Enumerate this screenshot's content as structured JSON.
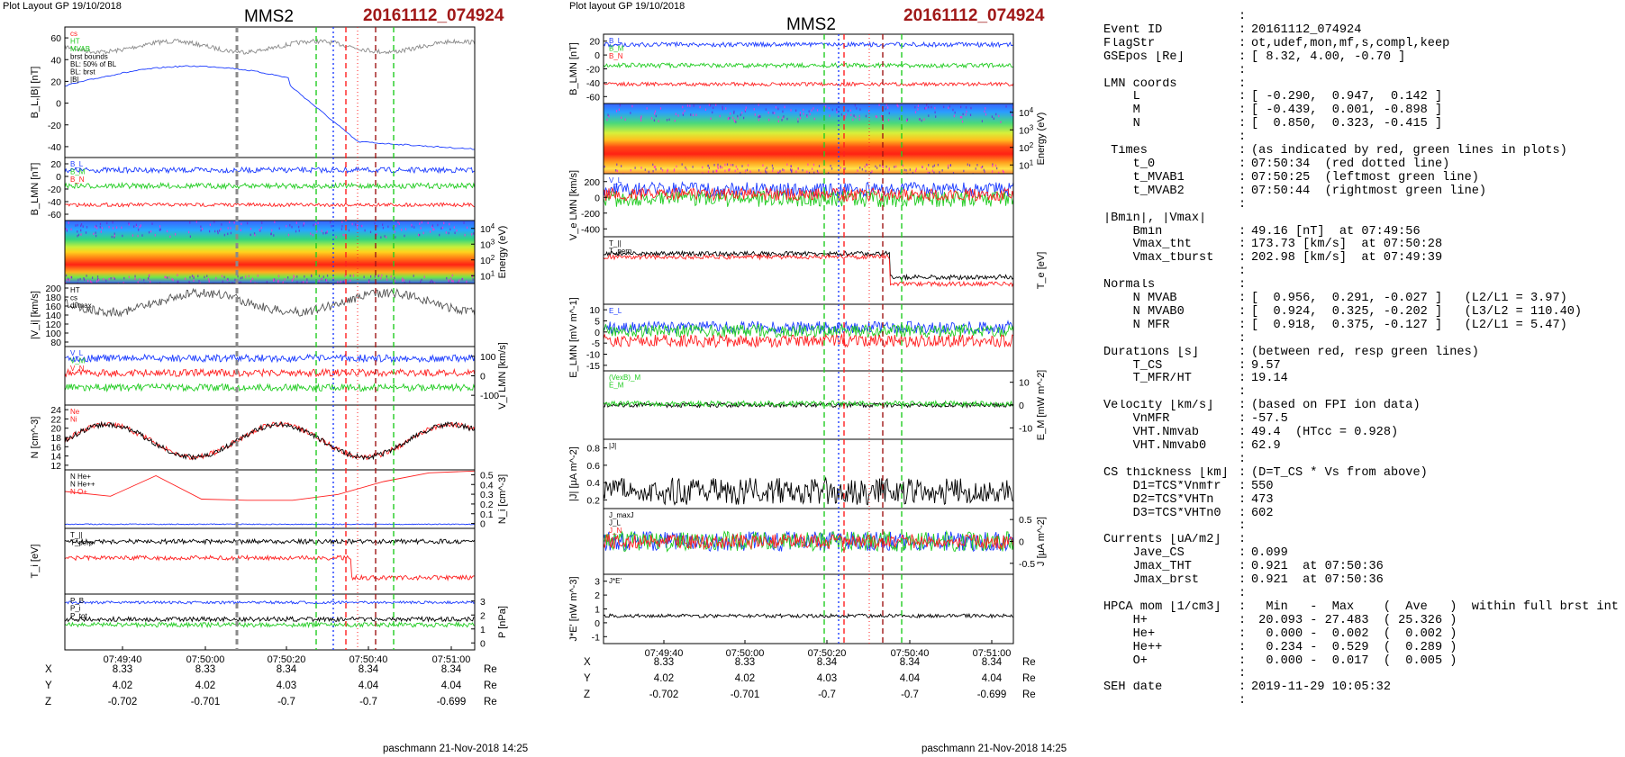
{
  "header": {
    "left_layout": "Plot Layout GP 19/10/2018",
    "mid_layout": "Plot layout GP 19/10/2018",
    "spacecraft": "MMS2",
    "event": "20161112_074924",
    "footer": "paschmann 21-Nov-2018 14:25"
  },
  "colors": {
    "event": "#a01818",
    "B_L": "#1c3cff",
    "B_M": "#22cc22",
    "B_N": "#ff2020",
    "gray": "#8a8a8a"
  },
  "left_panels": [
    {
      "ylabel": "B_L,|B| [nT]",
      "side": "left",
      "ticks": [
        60,
        40,
        20,
        0,
        -20,
        -40
      ],
      "legend": [
        "cs",
        "HT",
        "MVAB",
        "brst bounds",
        "BL: 50% of BL",
        "BL: brst",
        "|B|"
      ]
    },
    {
      "ylabel": "B_LMN [nT]",
      "side": "left",
      "ticks": [
        20,
        0,
        -20,
        -40,
        -60
      ],
      "legend": [
        "B_L",
        "B_M",
        "B_N"
      ]
    },
    {
      "ylabel": "Energy (eV)",
      "side": "right",
      "ticks": [
        "10^4",
        "10^3",
        "10^2",
        "10^1"
      ],
      "legend": []
    },
    {
      "ylabel": "|V_i| [km/s]",
      "side": "left",
      "ticks": [
        200,
        180,
        160,
        140,
        120,
        100,
        80
      ],
      "legend": [
        "HT",
        "cs",
        "dvmax"
      ]
    },
    {
      "ylabel": "V_i LMN [km/s]",
      "side": "right",
      "ticks": [
        100,
        0,
        -100
      ],
      "legend": [
        "V_L",
        "V_M",
        "V_N"
      ]
    },
    {
      "ylabel": "N [cm^-3]",
      "side": "left",
      "ticks": [
        24,
        22,
        20,
        18,
        16,
        14,
        12
      ],
      "legend": [
        "Ne",
        "Ni"
      ]
    },
    {
      "ylabel": "N_i [cm^-3]",
      "side": "right",
      "ticks": [
        0.5,
        0.4,
        0.3,
        0.2,
        0.1,
        0.0
      ],
      "legend": [
        "N He+",
        "N He++",
        "N O+"
      ]
    },
    {
      "ylabel": "T_i [eV]",
      "side": "left",
      "ticks": [],
      "legend": [
        "T_||",
        "T_perp"
      ]
    },
    {
      "ylabel": "P [nPa]",
      "side": "right",
      "ticks": [
        3,
        2,
        1,
        0
      ],
      "legend": [
        "P_B",
        "P_i",
        "P_tot"
      ]
    }
  ],
  "mid_panels": [
    {
      "ylabel": "B_LMN [nT]",
      "side": "left",
      "ticks": [
        20,
        0,
        -20,
        -40,
        -60
      ],
      "legend": [
        "B_L",
        "B_M",
        "B_N"
      ]
    },
    {
      "ylabel": "Energy (eV)",
      "side": "right",
      "ticks": [
        "10^4",
        "10^3",
        "10^2",
        "10^1"
      ],
      "legend": []
    },
    {
      "ylabel": "V_e LMN [km/s]",
      "side": "left",
      "ticks": [
        200,
        0,
        -200,
        -400
      ],
      "legend": [
        "V_L"
      ]
    },
    {
      "ylabel": "T_e [eV]",
      "side": "right",
      "ticks": [],
      "legend": [
        "T_||",
        "T_perp"
      ]
    },
    {
      "ylabel": "E_LMN [mV m^-1]",
      "side": "left",
      "ticks": [
        10,
        5,
        0,
        -5,
        -10,
        -15
      ],
      "legend": [
        "E_L"
      ]
    },
    {
      "ylabel": "E_M [mW m^-2]",
      "side": "right",
      "ticks": [
        10,
        0,
        -10
      ],
      "legend": [
        "(VexB)_M",
        "E_M"
      ]
    },
    {
      "ylabel": "|J| [µA m^-2]",
      "side": "left",
      "ticks": [
        0.8,
        0.6,
        0.4,
        0.2
      ],
      "legend": [
        "|J|"
      ]
    },
    {
      "ylabel": "J [µA m^-2]",
      "side": "right",
      "ticks": [
        0.5,
        0.0,
        -0.5
      ],
      "legend": [
        "J_maxJ",
        "J_L",
        "J_N"
      ]
    },
    {
      "ylabel": "J*E' [nW m^-3]",
      "side": "left",
      "ticks": [
        3,
        2,
        1,
        0,
        -1
      ],
      "legend": [
        "J*E'"
      ]
    }
  ],
  "time_ticks": [
    "07:49:40",
    "07:50:00",
    "07:50:20",
    "07:50:40",
    "07:51:00"
  ],
  "coords": {
    "X": {
      "label": "X",
      "values": [
        "8.33",
        "8.33",
        "8.34",
        "8.34",
        "8.34"
      ],
      "unit": "Re"
    },
    "Y": {
      "label": "Y",
      "values": [
        "4.02",
        "4.02",
        "4.03",
        "4.04",
        "4.04"
      ],
      "unit": "Re"
    },
    "Z": {
      "label": "Z",
      "values": [
        "-0.702",
        "-0.701",
        "-0.7",
        "-0.7",
        "-0.699"
      ],
      "unit": "Re"
    }
  },
  "info": [
    [
      "",
      "",
      ":"
    ],
    [
      "Event ID",
      ":",
      "20161112_074924"
    ],
    [
      "FlagStr",
      ":",
      "ot,udef,mon,mf,s,compl,keep"
    ],
    [
      "GSEpos [Re]",
      ":",
      "[ 8.32, 4.00, -0.70 ]"
    ],
    [
      "",
      "",
      ":"
    ],
    [
      "LMN coords",
      "",
      ":"
    ],
    [
      "    L",
      ":",
      "[ -0.290,  0.947,  0.142 ]"
    ],
    [
      "    M",
      ":",
      "[ -0.439,  0.001, -0.898 ]"
    ],
    [
      "    N",
      ":",
      "[  0.850,  0.323, -0.415 ]"
    ],
    [
      "",
      "",
      ":"
    ],
    [
      " Times",
      ":",
      "(as indicated by red, green lines in plots)"
    ],
    [
      "    t_0",
      ":",
      "07:50:34  (red dotted line)"
    ],
    [
      "    t_MVAB1",
      ":",
      "07:50:25  (leftmost green line)"
    ],
    [
      "    t_MVAB2",
      ":",
      "07:50:44  (rightmost green line)"
    ],
    [
      "",
      "",
      ":"
    ],
    [
      "|Bmin|, |Vmax|",
      "",
      ""
    ],
    [
      "    Bmin",
      ":",
      "49.16 [nT]  at 07:49:56"
    ],
    [
      "    Vmax_tht",
      ":",
      "173.73 [km/s]  at 07:50:28"
    ],
    [
      "    Vmax_tburst",
      ":",
      "202.98 [km/s]  at 07:49:39"
    ],
    [
      "",
      "",
      ":"
    ],
    [
      "Normals",
      "",
      ":"
    ],
    [
      "    N MVAB",
      ":",
      "[  0.956,  0.291, -0.027 ]   (L2/L1 = 3.97)"
    ],
    [
      "    N MVAB0",
      ":",
      "[  0.924,  0.325, -0.202 ]   (L3/L2 = 110.40)"
    ],
    [
      "    N MFR",
      ":",
      "[  0.918,  0.375, -0.127 ]   (L2/L1 = 5.47)"
    ],
    [
      "",
      "",
      ":"
    ],
    [
      "Durations [s]",
      ":",
      "(between red, resp green lines)"
    ],
    [
      "    T_CS",
      ":",
      "9.57"
    ],
    [
      "    T_MFR/HT",
      ":",
      "19.14"
    ],
    [
      "",
      "",
      ":"
    ],
    [
      "Velocity [km/s]",
      ":",
      "(based on FPI ion data)"
    ],
    [
      "    VnMFR",
      ":",
      "-57.5"
    ],
    [
      "    VHT.Nmvab",
      ":",
      "49.4  (HTcc = 0.928)"
    ],
    [
      "    VHT.Nmvab0",
      ":",
      "62.9"
    ],
    [
      "",
      "",
      ":"
    ],
    [
      "CS thickness [km]",
      ":",
      "(D=T_CS * Vs from above)"
    ],
    [
      "    D1=TCS*Vnmfr",
      ":",
      "550"
    ],
    [
      "    D2=TCS*VHTn",
      ":",
      "473"
    ],
    [
      "    D3=TCS*VHTn0",
      ":",
      "602"
    ],
    [
      "",
      "",
      ":"
    ],
    [
      "Currents [uA/m2]",
      ":",
      ""
    ],
    [
      "    Jave_CS",
      ":",
      "0.099"
    ],
    [
      "    Jmax_THT",
      ":",
      "0.921  at 07:50:36"
    ],
    [
      "    Jmax_brst",
      ":",
      "0.921  at 07:50:36"
    ],
    [
      "",
      "",
      ":"
    ],
    [
      "HPCA mom [1/cm3]",
      ":",
      "  Min   -  Max    (  Ave   )  within full brst int"
    ],
    [
      "    H+",
      ":",
      " 20.093 - 27.483  ( 25.326 )"
    ],
    [
      "    He+",
      ":",
      "  0.000 -  0.002  (  0.002 )"
    ],
    [
      "    He++",
      ":",
      "  0.234 -  0.529  (  0.289 )"
    ],
    [
      "    O+",
      ":",
      "  0.000 -  0.017  (  0.005 )"
    ],
    [
      "",
      "",
      ":"
    ],
    [
      "SEH date",
      ":",
      "2019-11-29 10:05:32"
    ],
    [
      "",
      "",
      ":"
    ]
  ],
  "chart_data": {
    "type": "line",
    "x_range": [
      "07:49:28",
      "07:51:03"
    ],
    "reference_lines": {
      "red_dotted_t0": "07:50:34",
      "green_mvab1": "07:50:25",
      "green_mvab2": "07:50:44"
    },
    "series": [
      {
        "name": "B_L",
        "x": [
          "07:49:30",
          "07:49:45",
          "07:50:00",
          "07:50:15",
          "07:50:25",
          "07:50:30",
          "07:50:40",
          "07:50:50",
          "07:51:00"
        ],
        "y": [
          8,
          14,
          27,
          22,
          25,
          12,
          -38,
          -40,
          -46
        ]
      },
      {
        "name": "|B|",
        "x": [
          "07:49:30",
          "07:49:45",
          "07:50:00",
          "07:50:15",
          "07:50:25",
          "07:50:40",
          "07:51:00"
        ],
        "y": [
          62,
          66,
          58,
          63,
          68,
          60,
          62
        ]
      },
      {
        "name": "Ni He++",
        "x": [
          "07:49:30",
          "07:49:40",
          "07:49:50",
          "07:50:00",
          "07:50:10",
          "07:50:20",
          "07:50:30",
          "07:50:40",
          "07:50:50"
        ],
        "y": [
          0.31,
          0.28,
          0.46,
          0.27,
          0.26,
          0.3,
          0.41,
          0.48,
          0.5
        ]
      }
    ]
  }
}
